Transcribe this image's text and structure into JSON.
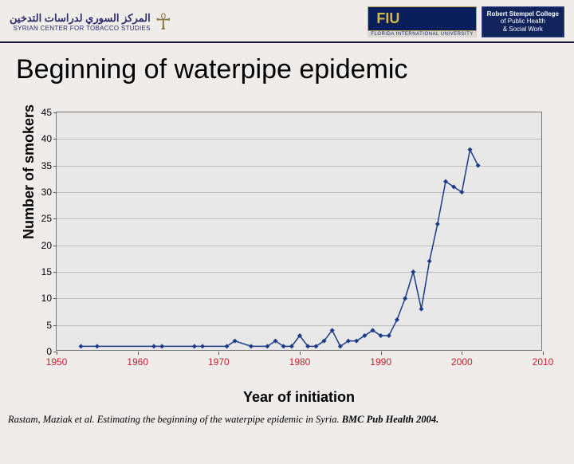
{
  "header": {
    "left_arabic": "المركز السوري لدراسات التدخين",
    "left_english": "SYRIAN CENTER FOR TOBACCO STUDIES",
    "fiu_label": "FIU",
    "fiu_subtitle": "FLORIDA INTERNATIONAL UNIVERSITY",
    "stempel_l1": "Robert Stempel College",
    "stempel_l2": "of Public Health",
    "stempel_l3": "& Social Work"
  },
  "title": "Beginning of waterpipe epidemic",
  "chart": {
    "type": "line",
    "plot_bg": "#e8e8e8",
    "grid_color": "#bcbcbc",
    "line_color": "#1a3a8a",
    "marker_color": "#1a3a8a",
    "marker_style": "diamond",
    "marker_size": 6,
    "line_width": 1.5,
    "xlabel": "Year of initiation",
    "ylabel": "Number of smokers",
    "label_fontsize": 18,
    "tick_fontsize": 12,
    "xlim": [
      1950,
      2010
    ],
    "ylim": [
      0,
      45
    ],
    "xtick_step": 10,
    "ytick_step": 5,
    "xtick_color": "#c02030",
    "data": {
      "x": [
        1953,
        1955,
        1962,
        1963,
        1967,
        1968,
        1971,
        1972,
        1974,
        1976,
        1977,
        1978,
        1979,
        1980,
        1981,
        1982,
        1983,
        1984,
        1985,
        1986,
        1987,
        1988,
        1989,
        1990,
        1991,
        1992,
        1993,
        1994,
        1995,
        1996,
        1997,
        1998,
        1999,
        2000,
        2001,
        2002
      ],
      "y": [
        1,
        1,
        1,
        1,
        1,
        1,
        1,
        2,
        1,
        1,
        2,
        1,
        1,
        3,
        1,
        1,
        2,
        4,
        1,
        2,
        2,
        3,
        4,
        3,
        3,
        6,
        10,
        15,
        8,
        17,
        24,
        32,
        31,
        30,
        38,
        35
      ]
    }
  },
  "citation": {
    "authors": "Rastam, Maziak et al. ",
    "title_part": "Estimating the beginning of the waterpipe epidemic in Syria. ",
    "journal": "BMC Pub Health 2004."
  }
}
